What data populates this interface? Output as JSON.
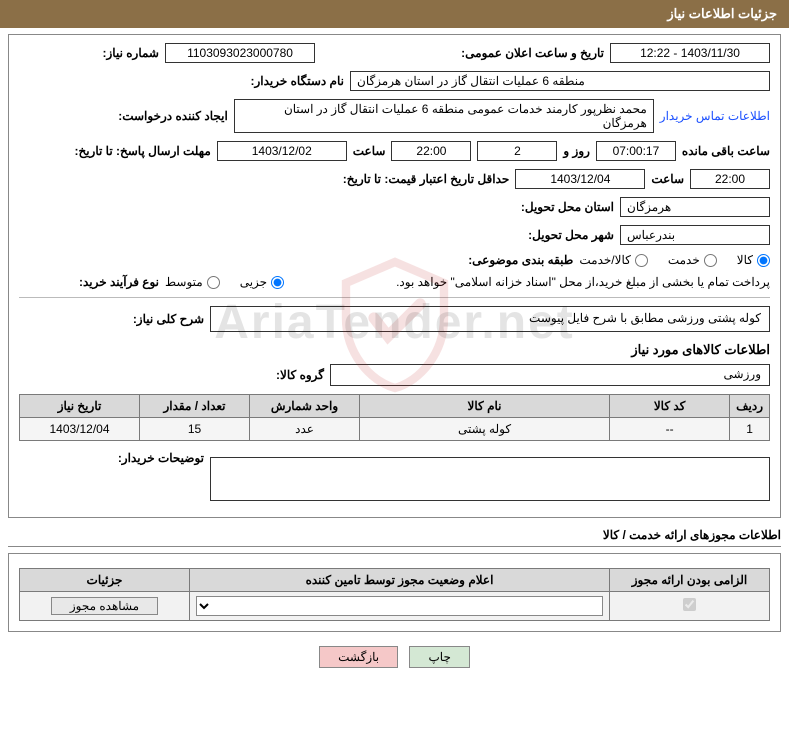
{
  "header": {
    "title": "جزئیات اطلاعات نیاز"
  },
  "fields": {
    "need_number_label": "شماره نیاز:",
    "need_number": "1103093023000780",
    "announce_datetime_label": "تاریخ و ساعت اعلان عمومی:",
    "announce_datetime": "1403/11/30 - 12:22",
    "buyer_org_label": "نام دستگاه خریدار:",
    "buyer_org": "منطقه 6 عملیات انتقال گاز در استان هرمزگان",
    "requester_label": "ایجاد کننده درخواست:",
    "requester": "محمد نظرپور کارمند خدمات عمومی منطقه 6 عملیات انتقال گاز در استان هرمزگان",
    "contact_link": "اطلاعات تماس خریدار",
    "deadline_label": "مهلت ارسال پاسخ: تا تاریخ:",
    "deadline_date": "1403/12/02",
    "hour_label": "ساعت",
    "deadline_hour": "22:00",
    "days_value": "2",
    "days_and_label": "روز و",
    "countdown": "07:00:17",
    "remaining_label": "ساعت باقی مانده",
    "min_validity_label": "حداقل تاریخ اعتبار قیمت: تا تاریخ:",
    "min_validity_date": "1403/12/04",
    "min_validity_hour": "22:00",
    "delivery_province_label": "استان محل تحویل:",
    "delivery_province": "هرمزگان",
    "delivery_city_label": "شهر محل تحویل:",
    "delivery_city": "بندرعباس",
    "category_label": "طبقه بندی موضوعی:",
    "cat_goods": "کالا",
    "cat_service": "خدمت",
    "cat_goods_service": "کالا/خدمت",
    "purchase_type_label": "نوع فرآیند خرید:",
    "pt_small": "جزیی",
    "pt_medium": "متوسط",
    "payment_note": "پرداخت تمام یا بخشی از مبلغ خرید،از محل \"اسناد خزانه اسلامی\" خواهد بود.",
    "general_desc_label": "شرح کلی نیاز:",
    "general_desc": "کوله پشتی ورزشی مطابق با شرح فایل پیوست",
    "items_section_title": "اطلاعات کالاهای مورد نیاز",
    "group_label": "گروه کالا:",
    "group_value": "ورزشی",
    "buyer_notes_label": "توضیحات خریدار:"
  },
  "items_table": {
    "headers": [
      "ردیف",
      "کد کالا",
      "نام کالا",
      "واحد شمارش",
      "تعداد / مقدار",
      "تاریخ نیاز"
    ],
    "rows": [
      [
        "1",
        "--",
        "کوله پشتی",
        "عدد",
        "15",
        "1403/12/04"
      ]
    ],
    "col_widths": [
      "36px",
      "120px",
      "auto",
      "110px",
      "110px",
      "120px"
    ]
  },
  "license": {
    "section_title": "اطلاعات مجوزهای ارائه خدمت / کالا",
    "headers": [
      "الزامی بودن ارائه مجوز",
      "اعلام وضعیت مجوز توسط تامین کننده",
      "جزئیات"
    ],
    "mandatory_checked": true,
    "status_value": "",
    "view_btn": "مشاهده مجوز",
    "col_widths": [
      "160px",
      "auto",
      "170px"
    ]
  },
  "footer": {
    "print": "چاپ",
    "back": "بازگشت"
  },
  "watermark_text": "AriaTender.net",
  "colors": {
    "header_bg": "#8b6f47",
    "border": "#888888",
    "th_bg": "#d9d9d9",
    "td_bg": "#f5f5f5",
    "link": "#1a4fff",
    "btn_print_bg": "#d4e8d4",
    "btn_back_bg": "#f5c8c8"
  }
}
